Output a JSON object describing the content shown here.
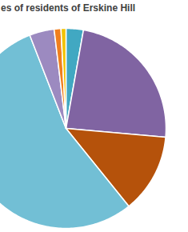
{
  "chart_data": {
    "type": "pie",
    "title": "es of residents of Erskine Hill",
    "categories": [
      null,
      null,
      null,
      null,
      null,
      null,
      null
    ],
    "values": [
      2.8,
      23.6,
      12.8,
      54.9,
      4.0,
      1.1,
      0.8
    ],
    "colors": [
      "#41a8c2",
      "#8064a2",
      "#b5520b",
      "#72bfd5",
      "#9c8ac0",
      "#f07f1e",
      "#f2c200"
    ]
  }
}
